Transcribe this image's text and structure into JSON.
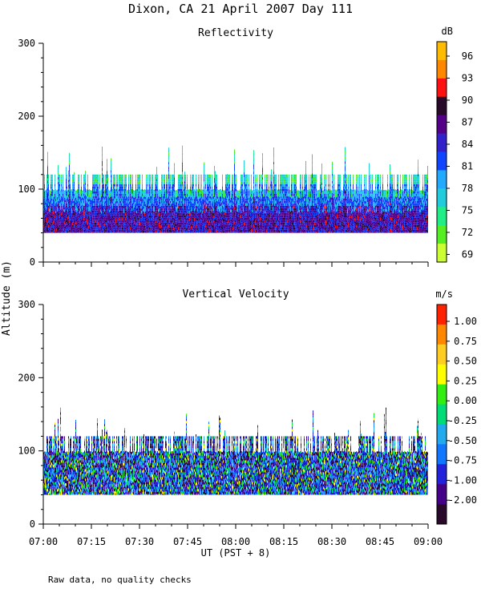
{
  "title": "Dixon, CA 21 April 2007  Day 111",
  "ylabel": "Altitude (m)",
  "xlabel": "UT  (PST + 8)",
  "footnote": "Raw data, no quality checks",
  "chart_data": [
    {
      "type": "heatmap",
      "title": "Reflectivity",
      "colorbar_unit": "dB",
      "x_range": [
        "07:00",
        "09:00"
      ],
      "ylim": [
        0,
        300
      ],
      "y_ticks": [
        0,
        100,
        200,
        300
      ],
      "x_ticks": [
        "07:00",
        "07:15",
        "07:30",
        "07:45",
        "08:00",
        "08:15",
        "08:30",
        "08:45",
        "09:00"
      ],
      "colorbar_ticks": [
        "69",
        "72",
        "75",
        "78",
        "81",
        "84",
        "87",
        "90",
        "93",
        "96"
      ],
      "colorbar_colors": [
        "#ccff33",
        "#55ee22",
        "#22ee88",
        "#22ccdd",
        "#22aaff",
        "#1144ff",
        "#3322cc",
        "#550088",
        "#2a0a2a",
        "#ff1111",
        "#ff8800",
        "#ffbb00"
      ],
      "data_altitude_range_m": [
        40,
        160
      ],
      "typical_top_m": 120,
      "max_top_m": 160,
      "typical_value_range": [
        78,
        90
      ]
    },
    {
      "type": "heatmap",
      "title": "Vertical Velocity",
      "colorbar_unit": "m/s",
      "x_range": [
        "07:00",
        "09:00"
      ],
      "ylim": [
        0,
        300
      ],
      "y_ticks": [
        0,
        100,
        200,
        300
      ],
      "x_ticks": [
        "07:00",
        "07:15",
        "07:30",
        "07:45",
        "08:00",
        "08:15",
        "08:30",
        "08:45",
        "09:00"
      ],
      "colorbar_ticks": [
        "1.00",
        "0.75",
        "0.50",
        "0.25",
        "0.00",
        "-0.25",
        "-0.50",
        "-0.75",
        "-1.00",
        "-2.00"
      ],
      "colorbar_colors": [
        "#2a0a2a",
        "#440088",
        "#2222dd",
        "#1177ff",
        "#22aaee",
        "#00dd77",
        "#33ee11",
        "#ffff00",
        "#ffcc22",
        "#ff8800",
        "#ff2200"
      ],
      "data_altitude_range_m": [
        40,
        160
      ],
      "typical_top_m": 120,
      "max_top_m": 160,
      "typical_value_range": [
        -2.0,
        0.5
      ]
    }
  ]
}
